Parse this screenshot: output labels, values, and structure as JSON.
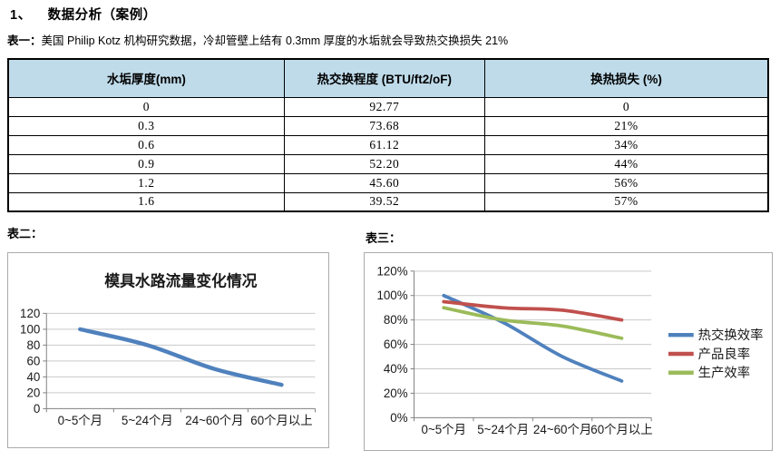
{
  "page": {
    "heading_number": "1、",
    "heading_text": "数据分析（案例）"
  },
  "table1": {
    "label": "表一：",
    "caption": "美国 Philip Kotz 机构研究数据，冷却管壁上结有 0.3mm 厚度的水垢就会导致热交换损失 21%",
    "headers": [
      "水垢厚度(mm)",
      "热交换程度 (BTU/ft2/oF)",
      "换热损失 (%)"
    ],
    "rows": [
      [
        "0",
        "92.77",
        "0"
      ],
      [
        "0.3",
        "73.68",
        "21%"
      ],
      [
        "0.6",
        "61.12",
        "34%"
      ],
      [
        "0.9",
        "52.20",
        "44%"
      ],
      [
        "1.2",
        "45.60",
        "56%"
      ],
      [
        "1.6",
        "39.52",
        "57%"
      ]
    ]
  },
  "chart2_label": "表二：",
  "chart3_label": "表三：",
  "chart_data": [
    {
      "type": "line",
      "title": "模具水路流量变化情况",
      "categories": [
        "0~5个月",
        "5~24个月",
        "24~60个月",
        "60个月以上"
      ],
      "series": [
        {
          "name": "",
          "color": "#4F81BD",
          "values": [
            100,
            80,
            50,
            30
          ]
        }
      ],
      "xlabel": "",
      "ylabel": "",
      "ylim": [
        0,
        120
      ],
      "ytick": 20,
      "percent": false,
      "grid": true,
      "legend": "none"
    },
    {
      "type": "line",
      "title": "",
      "categories": [
        "0~5个月",
        "5~24个月",
        "24~60个月",
        "60个月以上"
      ],
      "series": [
        {
          "name": "热交换效率",
          "color": "#4F81BD",
          "values": [
            100,
            78,
            50,
            30
          ]
        },
        {
          "name": "产品良率",
          "color": "#C0504D",
          "values": [
            95,
            90,
            88,
            80
          ]
        },
        {
          "name": "生产效率",
          "color": "#9BBB59",
          "values": [
            90,
            80,
            75,
            65
          ]
        }
      ],
      "xlabel": "",
      "ylabel": "",
      "ylim": [
        0,
        120
      ],
      "ytick": 20,
      "percent": true,
      "grid": true,
      "legend": "right"
    }
  ],
  "colors": {
    "table_header_bg": "#BFDBEA",
    "table_border": "#000000",
    "chart_border": "#ABABAB",
    "gridline": "#C9C9C9",
    "axis": "#808080",
    "series_blue": "#4F81BD",
    "series_red": "#C0504D",
    "series_green": "#9BBB59"
  }
}
